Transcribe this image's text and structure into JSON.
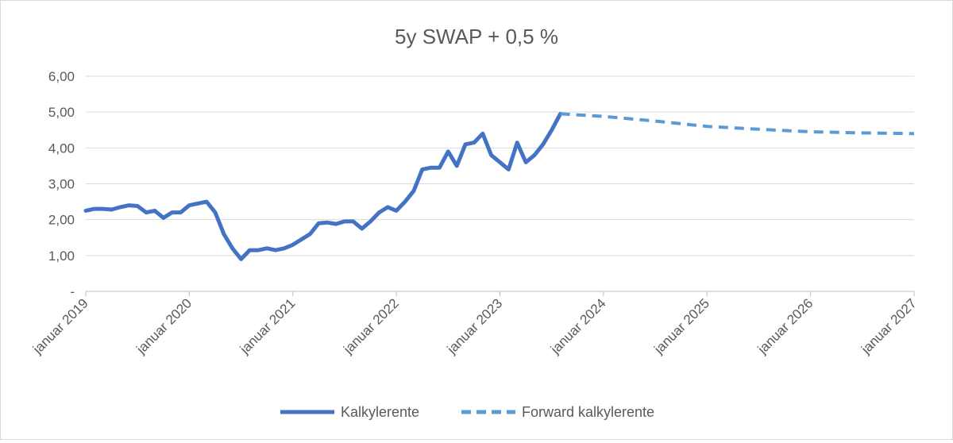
{
  "chart_data": {
    "type": "line",
    "title": "5y SWAP + 0,5 %",
    "xlabel": "",
    "ylabel": "",
    "ylim": [
      0,
      6
    ],
    "xlim": [
      "2019-01",
      "2027-01"
    ],
    "grid": true,
    "legend_placement": "bottom",
    "y_ticks": [
      "-",
      "1,00",
      "2,00",
      "3,00",
      "4,00",
      "5,00",
      "6,00"
    ],
    "x_ticks": [
      "januar 2019",
      "januar 2020",
      "januar 2021",
      "januar 2022",
      "januar 2023",
      "januar 2024",
      "januar 2025",
      "januar 2026",
      "januar 2027"
    ],
    "series": [
      {
        "name": "Kalkylerente",
        "color": "#4472c4",
        "style": "solid",
        "x": [
          "2019-01",
          "2019-02",
          "2019-03",
          "2019-04",
          "2019-05",
          "2019-06",
          "2019-07",
          "2019-08",
          "2019-09",
          "2019-10",
          "2019-11",
          "2019-12",
          "2020-01",
          "2020-02",
          "2020-03",
          "2020-04",
          "2020-05",
          "2020-06",
          "2020-07",
          "2020-08",
          "2020-09",
          "2020-10",
          "2020-11",
          "2020-12",
          "2021-01",
          "2021-02",
          "2021-03",
          "2021-04",
          "2021-05",
          "2021-06",
          "2021-07",
          "2021-08",
          "2021-09",
          "2021-10",
          "2021-11",
          "2021-12",
          "2022-01",
          "2022-02",
          "2022-03",
          "2022-04",
          "2022-05",
          "2022-06",
          "2022-07",
          "2022-08",
          "2022-09",
          "2022-10",
          "2022-11",
          "2022-12",
          "2023-01",
          "2023-02",
          "2023-03",
          "2023-04",
          "2023-05",
          "2023-06",
          "2023-07",
          "2023-08"
        ],
        "values": [
          2.25,
          2.3,
          2.3,
          2.28,
          2.35,
          2.4,
          2.38,
          2.2,
          2.25,
          2.05,
          2.2,
          2.2,
          2.4,
          2.45,
          2.5,
          2.2,
          1.6,
          1.2,
          0.9,
          1.15,
          1.15,
          1.2,
          1.15,
          1.2,
          1.3,
          1.45,
          1.6,
          1.9,
          1.92,
          1.88,
          1.95,
          1.95,
          1.75,
          1.95,
          2.2,
          2.35,
          2.25,
          2.5,
          2.8,
          3.4,
          3.45,
          3.45,
          3.9,
          3.5,
          4.1,
          4.15,
          4.4,
          3.8,
          3.6,
          3.4,
          4.15,
          3.6,
          3.8,
          4.1,
          4.5,
          4.95
        ]
      },
      {
        "name": "Forward kalkylerente",
        "color": "#5b9bd5",
        "style": "dashed",
        "x": [
          "2023-08",
          "2024-01",
          "2024-07",
          "2025-01",
          "2025-07",
          "2026-01",
          "2026-07",
          "2027-01"
        ],
        "values": [
          4.95,
          4.88,
          4.75,
          4.6,
          4.52,
          4.45,
          4.42,
          4.4
        ]
      }
    ]
  }
}
